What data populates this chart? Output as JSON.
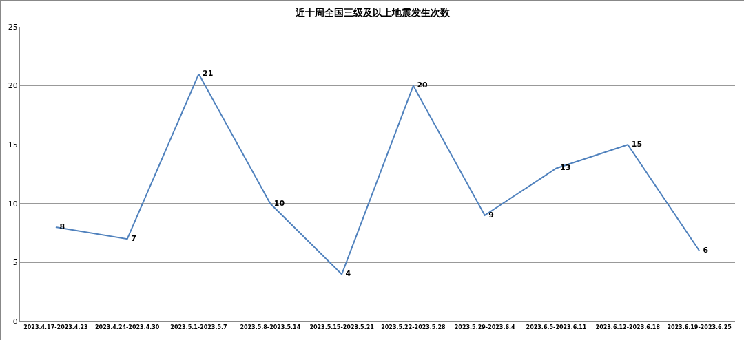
{
  "chart_data": {
    "type": "line",
    "title": "近十周全国三级及以上地震发生次数",
    "categories": [
      "2023.4.17-2023.4.23",
      "2023.4.24-2023.4.30",
      "2023.5.1-2023.5.7",
      "2023.5.8-2023.5.14",
      "2023.5.15-2023.5.21",
      "2023.5.22-2023.5.28",
      "2023.5.29-2023.6.4",
      "2023.6.5-2023.6.11",
      "2023.6.12-2023.6.18",
      "2023.6.19-2023.6.25"
    ],
    "series": [
      {
        "color": "#4f81bd",
        "values": [
          8,
          7,
          21,
          10,
          4,
          20,
          9,
          13,
          15,
          6
        ]
      }
    ],
    "ylim": [
      0,
      25
    ],
    "yticks": [
      0,
      5,
      10,
      15,
      20,
      25
    ],
    "grid": "y",
    "data_labels": true,
    "marker": "none",
    "line_style": "solid"
  }
}
